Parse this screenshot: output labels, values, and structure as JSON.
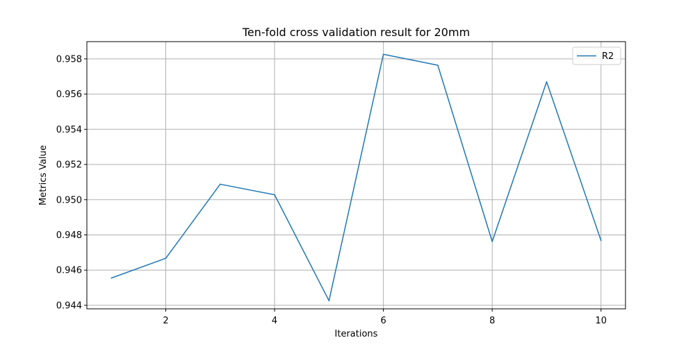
{
  "chart_data": {
    "type": "line",
    "title": "Ten-fold cross validation result for 20mm",
    "xlabel": "Iterations",
    "ylabel": "Metrics Value",
    "x": [
      1,
      2,
      3,
      4,
      5,
      6,
      7,
      8,
      9,
      10
    ],
    "series": [
      {
        "name": "R2",
        "color": "#1f77b4",
        "values": [
          0.94555,
          0.94667,
          0.95088,
          0.95028,
          0.94426,
          0.95826,
          0.95764,
          0.94762,
          0.9567,
          0.94768
        ]
      }
    ],
    "xlim": [
      0.55,
      10.45
    ],
    "ylim": [
      0.9438,
      0.95898
    ],
    "xticks": [
      2,
      4,
      6,
      8,
      10
    ],
    "xtick_labels": [
      "2",
      "4",
      "6",
      "8",
      "10"
    ],
    "yticks": [
      0.944,
      0.946,
      0.948,
      0.95,
      0.952,
      0.954,
      0.956,
      0.958
    ],
    "ytick_labels": [
      "0.944",
      "0.946",
      "0.948",
      "0.950",
      "0.952",
      "0.954",
      "0.956",
      "0.958"
    ],
    "grid": true,
    "legend_position": "top-right"
  }
}
